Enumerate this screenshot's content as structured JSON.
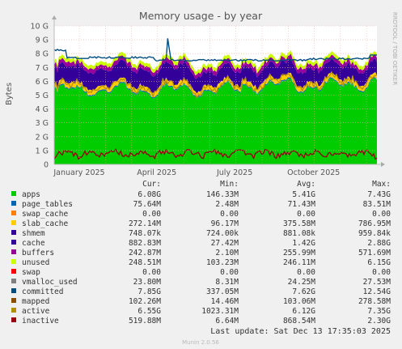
{
  "chart_data": {
    "type": "area",
    "title": "Memory usage - by year",
    "ylabel": "Bytes",
    "side_label": "RRDTOOL / TOBI OETIKER",
    "ylim": [
      0,
      10
    ],
    "y_unit": "G",
    "y_ticks": [
      0,
      1,
      2,
      3,
      4,
      5,
      6,
      7,
      8,
      9,
      10
    ],
    "y_tick_labels": [
      "0",
      "1 G",
      "2 G",
      "3 G",
      "4 G",
      "5 G",
      "6 G",
      "7 G",
      "8 G",
      "9 G",
      "10 G"
    ],
    "x_ticks": [
      {
        "label": "January 2025",
        "t": 2025.0
      },
      {
        "label": "April 2025",
        "t": 2025.247
      },
      {
        "label": "July 2025",
        "t": 2025.496
      },
      {
        "label": "October 2025",
        "t": 2025.748
      }
    ],
    "xlim": [
      2024.92,
      2025.95
    ],
    "grid": true,
    "series": [
      {
        "name": "apps",
        "color": "#00cc00",
        "cur": "6.08G",
        "min": "146.33M",
        "avg": "5.41G",
        "max": "7.43G"
      },
      {
        "name": "page_tables",
        "color": "#0066b3",
        "cur": "75.64M",
        "min": "2.48M",
        "avg": "71.43M",
        "max": "83.51M"
      },
      {
        "name": "swap_cache",
        "color": "#ff8000",
        "cur": "0.00",
        "min": "0.00",
        "avg": "0.00",
        "max": "0.00"
      },
      {
        "name": "slab_cache",
        "color": "#ffcc00",
        "cur": "272.14M",
        "min": "96.17M",
        "avg": "375.58M",
        "max": "786.95M"
      },
      {
        "name": "shmem",
        "color": "#330099",
        "cur": "748.07k",
        "min": "724.00k",
        "avg": "881.08k",
        "max": "959.84k"
      },
      {
        "name": "cache",
        "color": "#330099",
        "cur": "882.83M",
        "min": "27.42M",
        "avg": "1.42G",
        "max": "2.88G"
      },
      {
        "name": "buffers",
        "color": "#990099",
        "cur": "242.87M",
        "min": "2.10M",
        "avg": "255.99M",
        "max": "571.69M"
      },
      {
        "name": "unused",
        "color": "#ccff00",
        "cur": "248.51M",
        "min": "103.23M",
        "avg": "246.11M",
        "max": "6.15G"
      },
      {
        "name": "swap",
        "color": "#ff0000",
        "cur": "0.00",
        "min": "0.00",
        "avg": "0.00",
        "max": "0.00"
      },
      {
        "name": "vmalloc_used",
        "color": "#808080",
        "cur": "23.80M",
        "min": "8.31M",
        "avg": "24.25M",
        "max": "27.53M"
      },
      {
        "name": "committed",
        "color": "#004d80",
        "cur": "7.85G",
        "min": "337.05M",
        "avg": "7.62G",
        "max": "12.54G"
      },
      {
        "name": "mapped",
        "color": "#8c4d00",
        "cur": "102.26M",
        "min": "14.46M",
        "avg": "103.06M",
        "max": "278.58M"
      },
      {
        "name": "active",
        "color": "#b38f00",
        "cur": "6.55G",
        "min": "1023.31M",
        "avg": "6.12G",
        "max": "7.35G"
      },
      {
        "name": "inactive",
        "color": "#99000f",
        "cur": "519.88M",
        "min": "6.64M",
        "avg": "868.54M",
        "max": "2.30G"
      }
    ]
  },
  "legend_headers": {
    "cur": "Cur:",
    "min": "Min:",
    "avg": "Avg:",
    "max": "Max:"
  },
  "footer": {
    "last_update": "Last update: Sat Dec 13 17:35:03 2025",
    "generator": "Munin 2.0.56"
  }
}
